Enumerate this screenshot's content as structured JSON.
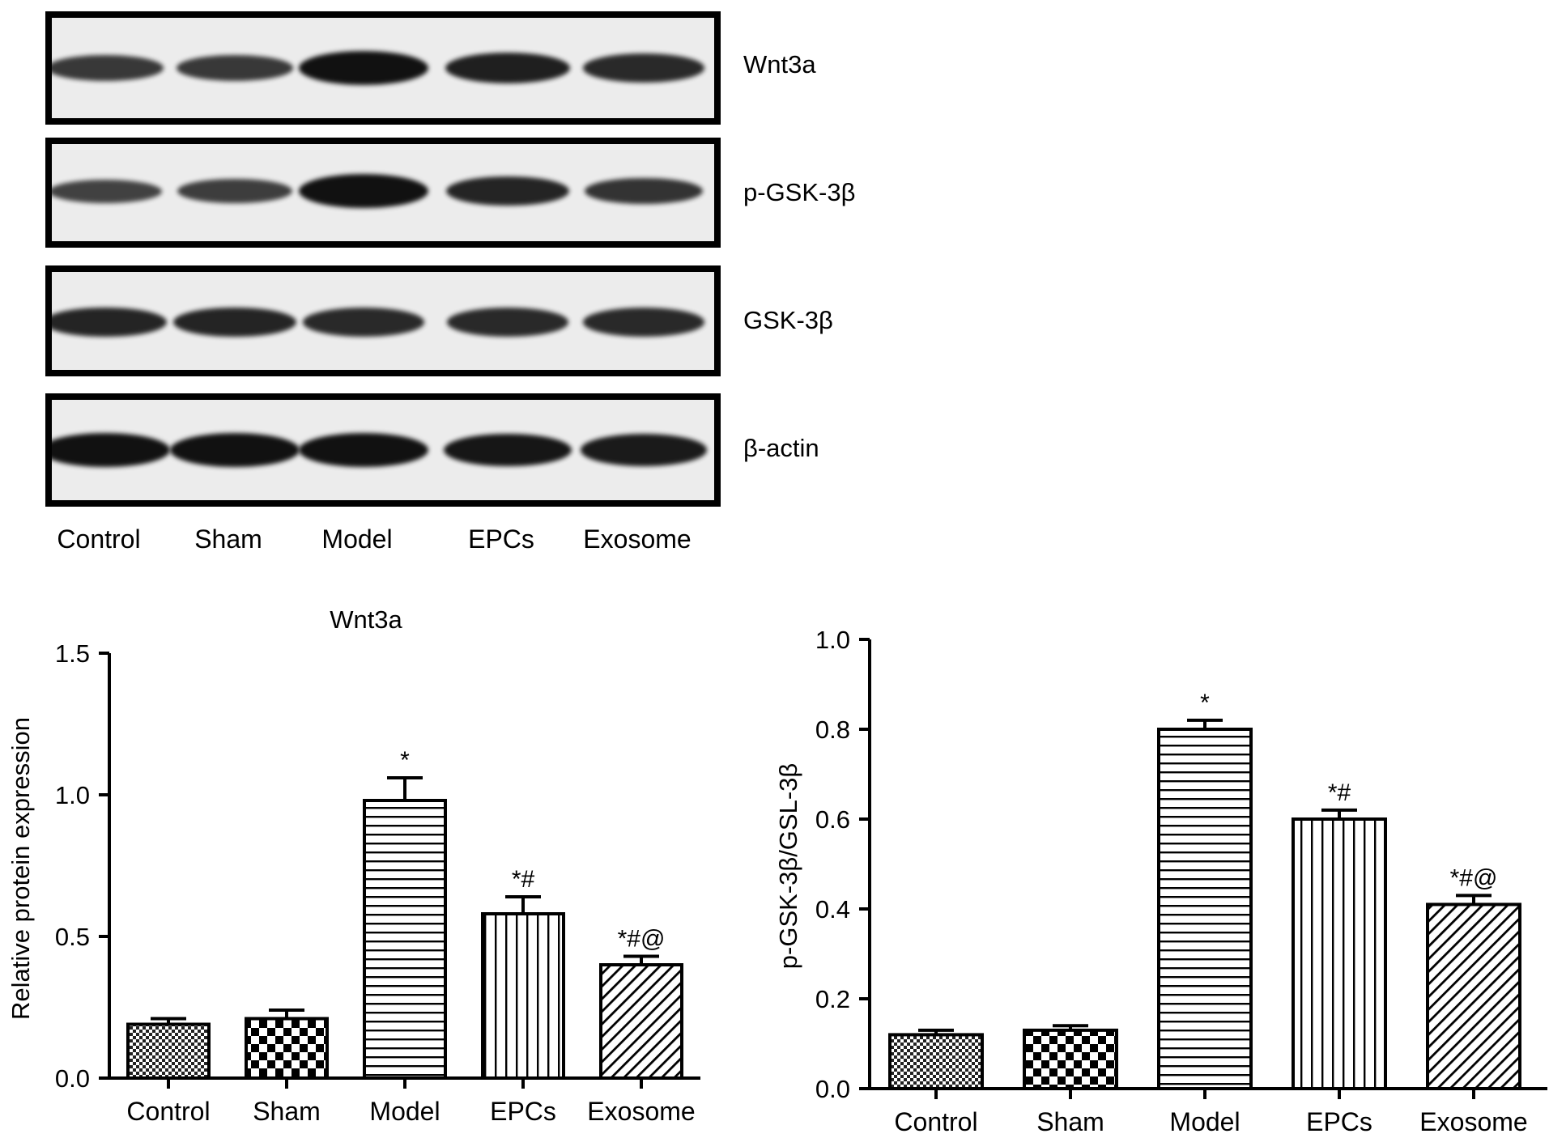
{
  "blot": {
    "lanes": [
      "Control",
      "Sham",
      "Model",
      "EPCs",
      "Exosome"
    ],
    "rows": [
      {
        "label": "Wnt3a",
        "intensities": [
          0.6,
          0.6,
          1.0,
          0.85,
          0.75
        ]
      },
      {
        "label": "p-GSK-3β",
        "intensities": [
          0.5,
          0.55,
          1.0,
          0.8,
          0.65
        ]
      },
      {
        "label": "GSK-3β",
        "intensities": [
          0.8,
          0.8,
          0.75,
          0.75,
          0.75
        ]
      },
      {
        "label": "β-actin",
        "intensities": [
          1.0,
          1.0,
          1.0,
          0.95,
          0.9
        ]
      }
    ]
  },
  "chart_data": [
    {
      "type": "bar",
      "title": "Wnt3a",
      "xlabel": "",
      "ylabel": "Relative protein expression",
      "ylim": [
        0,
        1.5
      ],
      "yticks": [
        "0.0",
        "0.5",
        "1.0",
        "1.5"
      ],
      "categories": [
        "Control",
        "Sham",
        "Model",
        "EPCs",
        "Exosome"
      ],
      "values": [
        0.19,
        0.21,
        0.98,
        0.58,
        0.4
      ],
      "errors": [
        0.02,
        0.03,
        0.08,
        0.06,
        0.03
      ],
      "annotations": [
        "",
        "",
        "*",
        "*#",
        "*#@"
      ],
      "patterns": [
        "fine-check",
        "check",
        "hlines",
        "vlines",
        "diag"
      ]
    },
    {
      "type": "bar",
      "title": "",
      "xlabel": "",
      "ylabel": "p-GSK-3β/GSL-3β",
      "ylim": [
        0,
        1.0
      ],
      "yticks": [
        "0.0",
        "0.2",
        "0.4",
        "0.6",
        "0.8",
        "1.0"
      ],
      "categories": [
        "Control",
        "Sham",
        "Model",
        "EPCs",
        "Exosome"
      ],
      "values": [
        0.12,
        0.13,
        0.8,
        0.6,
        0.41
      ],
      "errors": [
        0.01,
        0.01,
        0.02,
        0.02,
        0.02
      ],
      "annotations": [
        "",
        "",
        "*",
        "*#",
        "*#@"
      ],
      "patterns": [
        "fine-check",
        "check",
        "hlines",
        "vlines",
        "diag"
      ]
    }
  ]
}
